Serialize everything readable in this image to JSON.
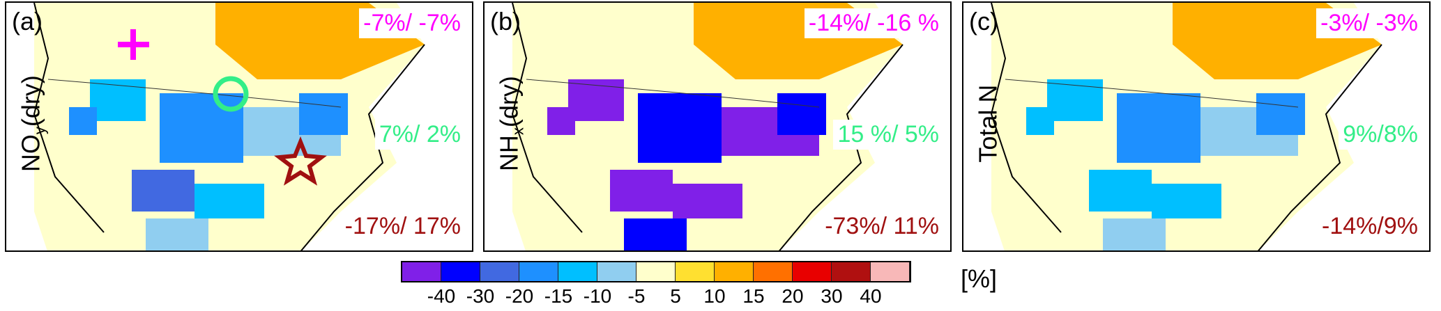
{
  "panels": [
    {
      "label": "(a)",
      "ylabel_main": "NO",
      "ylabel_sub": "y",
      "ylabel_tail": "(dry)",
      "stats": [
        "-7%/ -7%",
        "7%/ 2%",
        "-17%/ 17%"
      ],
      "markers": [
        "plus",
        "circle",
        "star"
      ]
    },
    {
      "label": "(b)",
      "ylabel_main": "NH",
      "ylabel_sub": "x",
      "ylabel_tail": "(dry)",
      "stats": [
        "-14%/ -16 %",
        "15 %/ 5%",
        "-73%/ 11%"
      ]
    },
    {
      "label": "(c)",
      "ylabel_main": "Total N",
      "ylabel_sub": "",
      "ylabel_tail": "",
      "stats": [
        "-3%/ -3%",
        "9%/8%",
        "-14%/9%"
      ]
    }
  ],
  "stat_colors": [
    "#ff00ff",
    "#33ee88",
    "#a01010"
  ],
  "colorbar": {
    "colors": [
      "#8020e8",
      "#0000ff",
      "#4169e1",
      "#1e90ff",
      "#00bfff",
      "#90cef0",
      "#ffffcc",
      "#ffe030",
      "#ffb000",
      "#ff7000",
      "#e80000",
      "#b01010",
      "#f8b8b8"
    ],
    "ticks": [
      "-40",
      "-30",
      "-20",
      "-15",
      "-10",
      "-5",
      "5",
      "10",
      "15",
      "20",
      "30",
      "40"
    ],
    "unit": "[%]"
  }
}
